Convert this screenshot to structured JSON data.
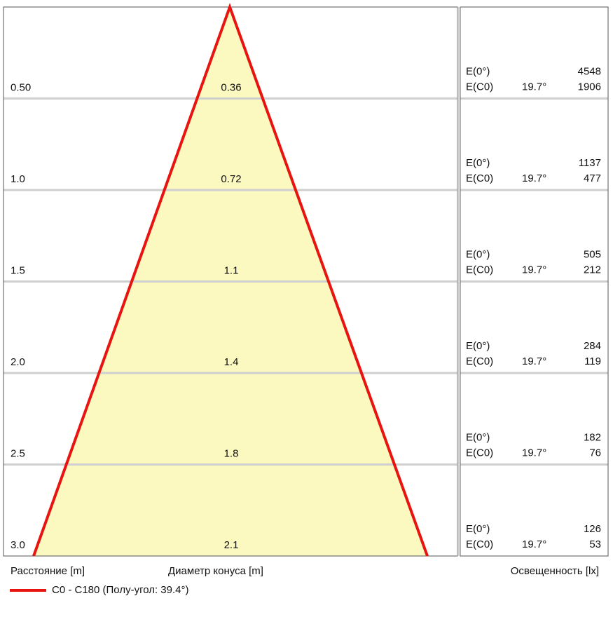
{
  "chart_data": {
    "type": "cone",
    "distance_label": "Расстояние [m]",
    "diameter_label": "Диаметр конуса [m]",
    "illuminance_label": "Освещенность [lx]",
    "legend": "C0 - C180 (Полу-угол: 39.4°)",
    "color": "#e8140f",
    "rows": [
      {
        "distance": "0.50",
        "diameter": 0.36,
        "e0_label": "E(0°)",
        "e0": 4548,
        "ec0_label": "E(C0)",
        "angle": "19.7°",
        "ec0": 1906
      },
      {
        "distance": "1.0",
        "diameter": "0.72",
        "e0_label": "E(0°)",
        "e0": 1137,
        "ec0_label": "E(C0)",
        "angle": "19.7°",
        "ec0": 477
      },
      {
        "distance": "1.5",
        "diameter": 1.1,
        "e0_label": "E(0°)",
        "e0": 505,
        "ec0_label": "E(C0)",
        "angle": "19.7°",
        "ec0": 212
      },
      {
        "distance": "2.0",
        "diameter": 1.4,
        "e0_label": "E(0°)",
        "e0": 284,
        "ec0_label": "E(C0)",
        "angle": "19.7°",
        "ec0": 119
      },
      {
        "distance": "2.5",
        "diameter": 1.8,
        "e0_label": "E(0°)",
        "e0": 182,
        "ec0_label": "E(C0)",
        "angle": "19.7°",
        "ec0": 76
      },
      {
        "distance": "3.0",
        "diameter": 2.1,
        "e0_label": "E(0°)",
        "e0": 126,
        "ec0_label": "E(C0)",
        "angle": "19.7°",
        "ec0": 53
      }
    ]
  }
}
